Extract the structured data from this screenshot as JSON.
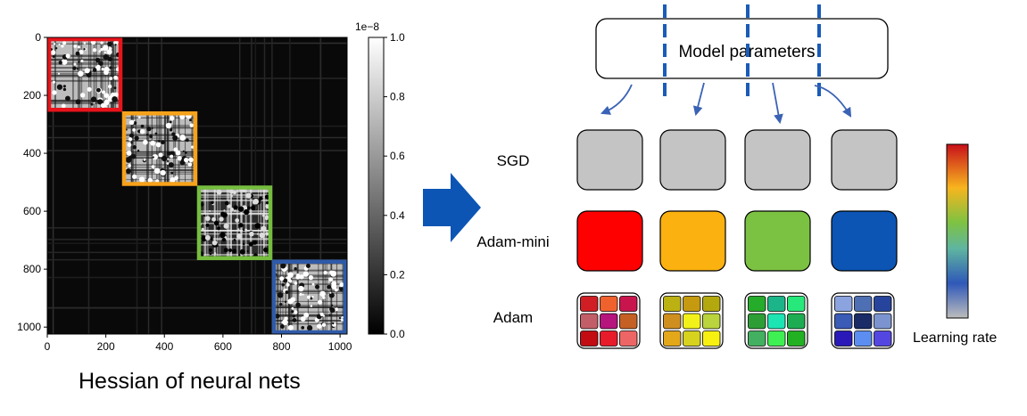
{
  "heatmap": {
    "caption": "Hessian of neural nets",
    "x_ticks": [
      "0",
      "200",
      "400",
      "600",
      "800",
      "1000"
    ],
    "y_ticks": [
      "0",
      "200",
      "400",
      "600",
      "800",
      "1000"
    ],
    "colorbar_ticks": [
      "1.0",
      "0.8",
      "0.6",
      "0.4",
      "0.2",
      "0.0"
    ],
    "colorbar_exponent": "1e−8",
    "block_colors": [
      "#e8141b",
      "#f7a21b",
      "#76bd3e",
      "#2f5aa8"
    ]
  },
  "diagram": {
    "model_parameters_label": "Model parameters",
    "rows": [
      {
        "label": "SGD",
        "colors": [
          "#c4c4c4",
          "#c4c4c4",
          "#c4c4c4",
          "#c4c4c4"
        ]
      },
      {
        "label": "Adam-mini",
        "colors": [
          "#ff0000",
          "#fbb10f",
          "#7cc242",
          "#0c55b4"
        ]
      },
      {
        "label": "Adam",
        "grids": [
          [
            "#d01e24",
            "#f0622d",
            "#c9154d",
            "#c25e67",
            "#b5157c",
            "#c56025",
            "#c20c12",
            "#e81b2a",
            "#ee6565"
          ],
          [
            "#bcb112",
            "#c69a10",
            "#b4a80f",
            "#cf8f1f",
            "#f2f21a",
            "#b9d43c",
            "#e3a71a",
            "#d6d21e",
            "#f8f010"
          ],
          [
            "#25ac2a",
            "#1cb58a",
            "#27e87a",
            "#2d9e36",
            "#1ce5b3",
            "#1eac52",
            "#42b060",
            "#3ff052",
            "#22b123"
          ],
          [
            "#8ba3df",
            "#4e6fb3",
            "#27449c",
            "#3a5bb6",
            "#1a2b67",
            "#7b94cf",
            "#2a19b8",
            "#5b8ef0",
            "#5447e1"
          ]
        ]
      }
    ],
    "colorbar_label": "Learning rate"
  }
}
